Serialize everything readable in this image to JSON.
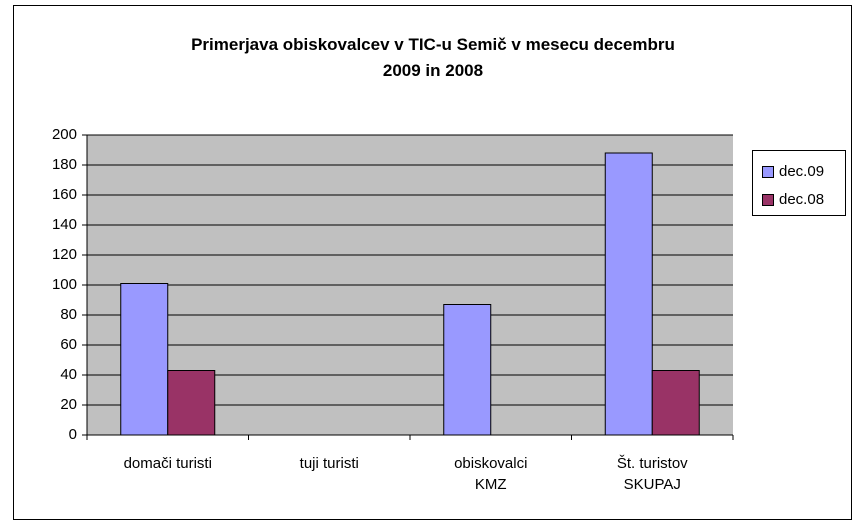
{
  "chart_data": {
    "type": "bar",
    "title": "Primerjava obiskovalcev v TIC-u Semič v mesecu decembru\n2009 in 2008",
    "categories": [
      "domači turisti",
      "tuji turisti",
      "obiskovalci\nKMZ",
      "Št. turistov\nSKUPAJ"
    ],
    "series": [
      {
        "name": "dec.09",
        "color": "#9999ff",
        "values": [
          101,
          0,
          87,
          188
        ]
      },
      {
        "name": "dec.08",
        "color": "#993366",
        "values": [
          43,
          0,
          0,
          43
        ]
      }
    ],
    "ylim": [
      0,
      200
    ],
    "yticks": [
      0,
      20,
      40,
      60,
      80,
      100,
      120,
      140,
      160,
      180,
      200
    ],
    "grid": true,
    "legend": "right"
  }
}
